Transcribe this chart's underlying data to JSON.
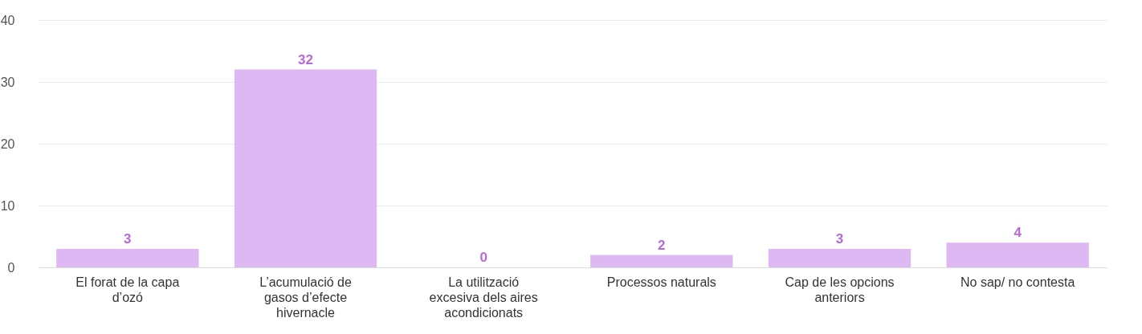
{
  "chart_data": {
    "type": "bar",
    "categories": [
      "El forat de la capa d’ozó",
      "L’acumulació de gasos d’efecte hivernacle",
      "La utilització excesiva dels aires acondicionats",
      "Processos naturals",
      "Cap de les opcions anteriors",
      "No sap/ no contesta"
    ],
    "values": [
      3,
      32,
      0,
      2,
      3,
      4
    ],
    "color": "#ddb8f2",
    "ylim": [
      0,
      40
    ],
    "yticks": [
      0,
      10,
      20,
      30,
      40
    ],
    "grid": "y",
    "data_labels": true
  }
}
